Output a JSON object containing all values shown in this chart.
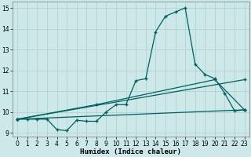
{
  "xlabel": "Humidex (Indice chaleur)",
  "bg_color": "#cce8e8",
  "grid_color": "#b8d4d4",
  "line_color": "#006060",
  "xlim": [
    -0.5,
    23.5
  ],
  "ylim": [
    8.8,
    15.3
  ],
  "yticks": [
    9,
    10,
    11,
    12,
    13,
    14,
    15
  ],
  "xticks": [
    0,
    1,
    2,
    3,
    4,
    5,
    6,
    7,
    8,
    9,
    10,
    11,
    12,
    13,
    14,
    15,
    16,
    17,
    18,
    19,
    20,
    21,
    22,
    23
  ],
  "series1_x": [
    0,
    1,
    2,
    3,
    4,
    5,
    6,
    7,
    8,
    9,
    10,
    11,
    12,
    13,
    14,
    15,
    16,
    17,
    18,
    19,
    20,
    21,
    22,
    23
  ],
  "series1_y": [
    9.65,
    9.65,
    9.65,
    9.65,
    9.15,
    9.1,
    9.6,
    9.55,
    9.55,
    10.0,
    10.35,
    10.35,
    11.5,
    11.6,
    13.85,
    14.6,
    14.8,
    15.0,
    12.3,
    11.8,
    11.6,
    10.9,
    10.05,
    10.1
  ],
  "series2_x": [
    0,
    23
  ],
  "series2_y": [
    9.65,
    10.1
  ],
  "series3_x": [
    0,
    23
  ],
  "series3_y": [
    9.65,
    11.55
  ],
  "series4_x": [
    0,
    8,
    20,
    23
  ],
  "series4_y": [
    9.65,
    10.35,
    11.55,
    10.1
  ]
}
